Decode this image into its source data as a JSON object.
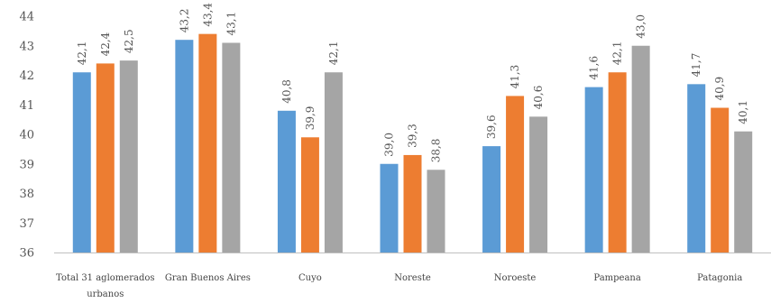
{
  "chart_data": {
    "type": "bar",
    "categories": [
      [
        "Total 31 aglomerados",
        "urbanos"
      ],
      [
        "Gran Buenos Aires"
      ],
      [
        "Cuyo"
      ],
      [
        "Noreste"
      ],
      [
        "Noroeste"
      ],
      [
        "Pampeana"
      ],
      [
        "Patagonia"
      ]
    ],
    "series": [
      {
        "color": "#5b9bd5",
        "values": [
          42.1,
          43.2,
          40.8,
          39.0,
          39.6,
          41.6,
          41.7
        ],
        "labels": [
          "42,1",
          "43,2",
          "40,8",
          "39,0",
          "39,6",
          "41,6",
          "41,7"
        ]
      },
      {
        "color": "#ed7d31",
        "values": [
          42.4,
          43.4,
          39.9,
          39.3,
          41.3,
          42.1,
          40.9
        ],
        "labels": [
          "42,4",
          "43,4",
          "39,9",
          "39,3",
          "41,3",
          "42,1",
          "40,9"
        ]
      },
      {
        "color": "#a5a5a5",
        "values": [
          42.5,
          43.1,
          42.1,
          38.8,
          40.6,
          43.0,
          40.1
        ],
        "labels": [
          "42,5",
          "43,1",
          "42,1",
          "38,8",
          "40,6",
          "43,0",
          "40,1"
        ]
      }
    ],
    "ylim": [
      36,
      44
    ],
    "yticks": [
      "36",
      "37",
      "38",
      "39",
      "40",
      "41",
      "42",
      "43",
      "44"
    ],
    "grid": false,
    "legend": "none"
  }
}
